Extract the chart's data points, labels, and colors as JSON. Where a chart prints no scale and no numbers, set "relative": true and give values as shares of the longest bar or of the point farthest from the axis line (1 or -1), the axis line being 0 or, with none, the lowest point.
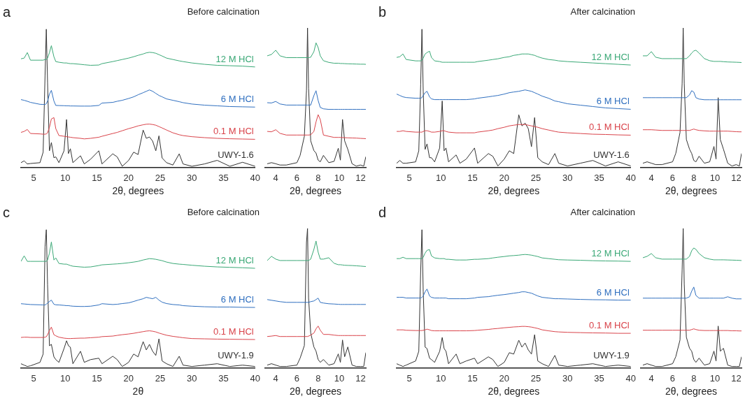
{
  "chart_data": [
    {
      "type": "line",
      "relative": true,
      "title": "Before calcination",
      "annotations": [
        "a"
      ],
      "xlabel": "2θ, degrees",
      "xlim": [
        3,
        40
      ],
      "xticks": [
        5,
        10,
        15,
        20,
        25,
        30,
        35,
        40
      ],
      "x": [
        3,
        3.5,
        4,
        4.5,
        6,
        6.5,
        6.8,
        7,
        7.2,
        7.5,
        7.8,
        8.2,
        8.5,
        9,
        9.8,
        10.2,
        10.5,
        10.8,
        11.2,
        12.4,
        13,
        14,
        15.3,
        15.8,
        17.5,
        18.2,
        19,
        20,
        20.8,
        21.5,
        22.3,
        22.8,
        23.3,
        23.8,
        24.3,
        24.8,
        25.3,
        26,
        27,
        28,
        28.6,
        30,
        32,
        34,
        36,
        38,
        40
      ],
      "series": [
        {
          "name": "12 M HCl",
          "color": "#3aa876",
          "values": [
            0.785,
            0.79,
            0.83,
            0.775,
            0.775,
            0.775,
            0.78,
            0.78,
            0.79,
            0.83,
            0.88,
            0.8,
            0.765,
            0.76,
            0.755,
            0.755,
            0.752,
            0.75,
            0.75,
            0.745,
            0.742,
            0.738,
            0.74,
            0.75,
            0.765,
            0.772,
            0.78,
            0.79,
            0.8,
            0.81,
            0.82,
            0.828,
            0.832,
            0.83,
            0.825,
            0.815,
            0.805,
            0.79,
            0.78,
            0.77,
            0.765,
            0.755,
            0.745,
            0.738,
            0.735,
            0.732,
            0.726
          ]
        },
        {
          "name": "6 M HCl",
          "color": "#2f6fbf",
          "values": [
            0.49,
            0.485,
            0.478,
            0.47,
            0.456,
            0.455,
            0.455,
            0.46,
            0.48,
            0.53,
            0.557,
            0.48,
            0.448,
            0.447,
            0.446,
            0.445,
            0.445,
            0.444,
            0.444,
            0.443,
            0.443,
            0.443,
            0.448,
            0.465,
            0.47,
            0.478,
            0.485,
            0.498,
            0.51,
            0.525,
            0.54,
            0.55,
            0.56,
            0.55,
            0.535,
            0.52,
            0.51,
            0.495,
            0.485,
            0.475,
            0.468,
            0.458,
            0.45,
            0.445,
            0.44,
            0.438,
            0.436
          ]
        },
        {
          "name": "0.1 M HCl",
          "color": "#d9434a",
          "values": [
            0.253,
            0.26,
            0.274,
            0.245,
            0.242,
            0.24,
            0.24,
            0.242,
            0.25,
            0.29,
            0.35,
            0.36,
            0.28,
            0.23,
            0.225,
            0.222,
            0.22,
            0.218,
            0.215,
            0.21,
            0.206,
            0.21,
            0.218,
            0.225,
            0.245,
            0.253,
            0.265,
            0.28,
            0.29,
            0.3,
            0.308,
            0.312,
            0.313,
            0.31,
            0.305,
            0.295,
            0.285,
            0.27,
            0.25,
            0.236,
            0.23,
            0.222,
            0.215,
            0.21,
            0.207,
            0.205,
            0.203
          ]
        },
        {
          "name": "UWY-1.6",
          "color": "#333333",
          "values": [
            0.034,
            0.047,
            0.025,
            0.028,
            0.034,
            0.11,
            0.66,
            1.0,
            0.61,
            0.12,
            0.18,
            0.07,
            0.076,
            0.034,
            0.12,
            0.346,
            0.1,
            0.135,
            0.034,
            0.084,
            0.025,
            0.059,
            0.12,
            0.025,
            0.098,
            0.076,
            0.008,
            0.05,
            0.11,
            0.093,
            0.27,
            0.21,
            0.22,
            0.19,
            0.12,
            0.228,
            0.068,
            0.034,
            0.017,
            0.098,
            0.025,
            0.008,
            0.025,
            0.051,
            0.008,
            0.037,
            0.008
          ]
        }
      ]
    },
    {
      "type": "line",
      "relative": true,
      "xlabel": "2θ, degrees",
      "xlim": [
        3,
        12.5
      ],
      "xticks": [
        4,
        6,
        8,
        10,
        12
      ],
      "x": [
        3.2,
        3.6,
        4,
        4.4,
        5,
        6,
        6.3,
        6.7,
        6.9,
        7.0,
        7.1,
        7.3,
        7.6,
        7.8,
        8.0,
        8.2,
        8.5,
        9,
        9.5,
        9.9,
        10.1,
        10.3,
        10.5,
        10.8,
        11.2,
        11.6,
        12,
        12.3,
        12.5
      ],
      "series": [
        {
          "color": "#3aa876",
          "values": [
            0.8,
            0.81,
            0.84,
            0.8,
            0.787,
            0.787,
            0.787,
            0.787,
            0.787,
            0.787,
            0.787,
            0.79,
            0.83,
            0.893,
            0.86,
            0.8,
            0.765,
            0.753,
            0.747,
            0.747,
            0.745,
            0.745,
            0.744,
            0.743,
            0.742,
            0.741,
            0.74,
            0.74,
            0.739
          ]
        },
        {
          "color": "#2f6fbf",
          "values": [
            0.464,
            0.462,
            0.473,
            0.455,
            0.447,
            0.447,
            0.447,
            0.447,
            0.447,
            0.447,
            0.447,
            0.447,
            0.515,
            0.55,
            0.48,
            0.43,
            0.42,
            0.416,
            0.416,
            0.416,
            0.416,
            0.416,
            0.416,
            0.416,
            0.416,
            0.416,
            0.416,
            0.416,
            0.416
          ]
        },
        {
          "color": "#d9434a",
          "values": [
            0.258,
            0.255,
            0.27,
            0.244,
            0.232,
            0.232,
            0.232,
            0.232,
            0.232,
            0.232,
            0.232,
            0.234,
            0.258,
            0.326,
            0.378,
            0.344,
            0.232,
            0.223,
            0.215,
            0.215,
            0.215,
            0.214,
            0.213,
            0.212,
            0.211,
            0.21,
            0.208,
            0.207,
            0.206
          ]
        },
        {
          "color": "#333333",
          "values": [
            0.026,
            0.034,
            0.026,
            0.017,
            0.017,
            0.034,
            0.086,
            0.223,
            0.55,
            1.0,
            0.567,
            0.19,
            0.12,
            0.103,
            0.052,
            0.04,
            0.086,
            0.034,
            0.043,
            0.137,
            0.052,
            0.344,
            0.19,
            0.129,
            0.026,
            0.009,
            0.017,
            0.009,
            0.077
          ]
        }
      ]
    },
    {
      "type": "line",
      "relative": true,
      "title": "After calcination",
      "annotations": [
        "b"
      ],
      "xlabel": "2θ, degrees",
      "xlim": [
        3,
        40
      ],
      "xticks": [
        5,
        10,
        15,
        20,
        25,
        30,
        35,
        40
      ],
      "x": [
        3,
        3.5,
        4,
        4.5,
        6,
        6.5,
        6.8,
        7,
        7.2,
        7.5,
        7.8,
        8.2,
        8.5,
        9,
        9.8,
        10.2,
        10.5,
        10.8,
        11.2,
        12.4,
        13,
        14,
        15.3,
        15.8,
        17.5,
        18.2,
        19,
        20,
        20.8,
        21.5,
        22.3,
        22.8,
        23.3,
        23.8,
        24.3,
        24.8,
        25.3,
        26,
        27,
        28,
        28.6,
        30,
        32,
        34,
        36,
        38,
        40
      ],
      "series": [
        {
          "name": "12 M HCl",
          "color": "#3aa876",
          "values": [
            0.795,
            0.8,
            0.82,
            0.78,
            0.77,
            0.77,
            0.77,
            0.775,
            0.79,
            0.82,
            0.83,
            0.84,
            0.795,
            0.77,
            0.765,
            0.76,
            0.76,
            0.76,
            0.76,
            0.76,
            0.76,
            0.76,
            0.76,
            0.765,
            0.775,
            0.78,
            0.785,
            0.795,
            0.8,
            0.81,
            0.815,
            0.82,
            0.82,
            0.82,
            0.815,
            0.81,
            0.8,
            0.79,
            0.78,
            0.775,
            0.77,
            0.765,
            0.76,
            0.755,
            0.75,
            0.745,
            0.74
          ]
        },
        {
          "name": "6 M HCl",
          "color": "#2f6fbf",
          "values": [
            0.53,
            0.52,
            0.51,
            0.505,
            0.5,
            0.5,
            0.5,
            0.505,
            0.52,
            0.54,
            0.55,
            0.51,
            0.495,
            0.49,
            0.49,
            0.49,
            0.49,
            0.49,
            0.49,
            0.49,
            0.49,
            0.49,
            0.495,
            0.5,
            0.51,
            0.515,
            0.52,
            0.53,
            0.54,
            0.545,
            0.55,
            0.555,
            0.56,
            0.555,
            0.55,
            0.54,
            0.53,
            0.515,
            0.5,
            0.48,
            0.475,
            0.46,
            0.45,
            0.44,
            0.43,
            0.425,
            0.42
          ]
        },
        {
          "name": "0.1 M HCl",
          "color": "#d9434a",
          "values": [
            0.26,
            0.26,
            0.265,
            0.26,
            0.255,
            0.255,
            0.255,
            0.255,
            0.26,
            0.265,
            0.265,
            0.26,
            0.255,
            0.255,
            0.26,
            0.265,
            0.265,
            0.26,
            0.255,
            0.25,
            0.25,
            0.25,
            0.25,
            0.255,
            0.265,
            0.27,
            0.28,
            0.29,
            0.3,
            0.305,
            0.31,
            0.31,
            0.31,
            0.305,
            0.3,
            0.295,
            0.29,
            0.28,
            0.27,
            0.26,
            0.255,
            0.25,
            0.245,
            0.24,
            0.238,
            0.235,
            0.233
          ]
        },
        {
          "name": "UWY-1.6",
          "color": "#333333",
          "values": [
            0.03,
            0.05,
            0.03,
            0.03,
            0.04,
            0.12,
            0.6,
            1.0,
            0.55,
            0.13,
            0.17,
            0.07,
            0.07,
            0.04,
            0.14,
            0.48,
            0.12,
            0.14,
            0.04,
            0.09,
            0.03,
            0.06,
            0.14,
            0.03,
            0.1,
            0.08,
            0.01,
            0.06,
            0.12,
            0.1,
            0.38,
            0.3,
            0.32,
            0.28,
            0.15,
            0.36,
            0.07,
            0.04,
            0.02,
            0.1,
            0.03,
            0.01,
            0.03,
            0.05,
            0.01,
            0.04,
            0.01
          ]
        }
      ]
    },
    {
      "type": "line",
      "relative": true,
      "xlabel": "2θ, degrees",
      "xlim": [
        3,
        12.5
      ],
      "xticks": [
        4,
        6,
        8,
        10,
        12
      ],
      "x": [
        3.2,
        3.6,
        4,
        4.4,
        5,
        6,
        6.3,
        6.7,
        6.9,
        7.0,
        7.1,
        7.3,
        7.6,
        7.8,
        8.0,
        8.2,
        8.5,
        9,
        9.5,
        9.9,
        10.1,
        10.3,
        10.5,
        10.8,
        11.2,
        11.6,
        12,
        12.3,
        12.5
      ],
      "series": [
        {
          "color": "#3aa876",
          "values": [
            0.8,
            0.8,
            0.83,
            0.79,
            0.78,
            0.78,
            0.78,
            0.78,
            0.78,
            0.78,
            0.78,
            0.78,
            0.8,
            0.82,
            0.835,
            0.84,
            0.82,
            0.78,
            0.765,
            0.76,
            0.76,
            0.76,
            0.76,
            0.758,
            0.756,
            0.755,
            0.754,
            0.753,
            0.752
          ]
        },
        {
          "color": "#2f6fbf",
          "values": [
            0.5,
            0.5,
            0.5,
            0.5,
            0.5,
            0.5,
            0.5,
            0.5,
            0.5,
            0.5,
            0.5,
            0.5,
            0.52,
            0.55,
            0.54,
            0.5,
            0.49,
            0.485,
            0.485,
            0.485,
            0.485,
            0.485,
            0.485,
            0.485,
            0.485,
            0.485,
            0.485,
            0.485,
            0.485
          ]
        },
        {
          "color": "#d9434a",
          "values": [
            0.27,
            0.27,
            0.27,
            0.268,
            0.265,
            0.265,
            0.265,
            0.265,
            0.265,
            0.265,
            0.265,
            0.265,
            0.265,
            0.27,
            0.275,
            0.27,
            0.265,
            0.262,
            0.26,
            0.26,
            0.26,
            0.26,
            0.26,
            0.26,
            0.26,
            0.258,
            0.256,
            0.255,
            0.255
          ]
        },
        {
          "color": "#333333",
          "values": [
            0.03,
            0.04,
            0.03,
            0.02,
            0.02,
            0.04,
            0.1,
            0.25,
            0.6,
            1.0,
            0.6,
            0.2,
            0.13,
            0.1,
            0.05,
            0.04,
            0.08,
            0.03,
            0.04,
            0.15,
            0.06,
            0.5,
            0.2,
            0.13,
            0.03,
            0.01,
            0.02,
            0.01,
            0.1
          ]
        }
      ]
    },
    {
      "type": "line",
      "relative": true,
      "title": "Before calcination",
      "annotations": [
        "c"
      ],
      "xlabel": "2θ",
      "xlim": [
        3,
        40
      ],
      "xticks": [
        5,
        10,
        15,
        20,
        25,
        30,
        35,
        40
      ],
      "x": [
        3,
        3.5,
        4,
        4.5,
        6,
        6.5,
        6.8,
        7,
        7.2,
        7.5,
        7.8,
        8.2,
        8.5,
        9,
        9.8,
        10.2,
        10.5,
        10.8,
        11.2,
        12.4,
        13,
        14,
        15.3,
        15.8,
        17.5,
        18.2,
        19,
        20,
        20.8,
        21.5,
        22.3,
        22.8,
        23.3,
        23.8,
        24.3,
        24.8,
        25.3,
        26,
        27,
        28,
        28.6,
        30,
        32,
        34,
        36,
        38,
        40
      ],
      "series": [
        {
          "name": "12 M HCl",
          "color": "#3aa876",
          "values": [
            0.77,
            0.81,
            0.77,
            0.77,
            0.77,
            0.77,
            0.77,
            0.77,
            0.78,
            0.83,
            0.91,
            0.78,
            0.795,
            0.755,
            0.75,
            0.75,
            0.745,
            0.74,
            0.735,
            0.73,
            0.728,
            0.73,
            0.74,
            0.745,
            0.75,
            0.752,
            0.755,
            0.76,
            0.765,
            0.77,
            0.78,
            0.785,
            0.79,
            0.788,
            0.785,
            0.78,
            0.775,
            0.765,
            0.755,
            0.75,
            0.748,
            0.742,
            0.735,
            0.73,
            0.727,
            0.724,
            0.72
          ]
        },
        {
          "name": "6 M HCl",
          "color": "#2f6fbf",
          "values": [
            0.464,
            0.462,
            0.46,
            0.458,
            0.456,
            0.455,
            0.455,
            0.46,
            0.47,
            0.48,
            0.49,
            0.46,
            0.456,
            0.455,
            0.452,
            0.45,
            0.45,
            0.448,
            0.446,
            0.444,
            0.444,
            0.446,
            0.455,
            0.464,
            0.458,
            0.46,
            0.465,
            0.47,
            0.48,
            0.49,
            0.5,
            0.51,
            0.505,
            0.5,
            0.51,
            0.49,
            0.475,
            0.465,
            0.458,
            0.455,
            0.45,
            0.446,
            0.442,
            0.44,
            0.44,
            0.438,
            0.437
          ]
        },
        {
          "name": "0.1 M HCl",
          "color": "#d9434a",
          "values": [
            0.22,
            0.222,
            0.222,
            0.22,
            0.22,
            0.22,
            0.222,
            0.225,
            0.24,
            0.27,
            0.295,
            0.24,
            0.232,
            0.222,
            0.215,
            0.213,
            0.212,
            0.212,
            0.213,
            0.215,
            0.215,
            0.218,
            0.222,
            0.226,
            0.23,
            0.235,
            0.24,
            0.245,
            0.25,
            0.256,
            0.262,
            0.266,
            0.268,
            0.265,
            0.26,
            0.252,
            0.245,
            0.236,
            0.228,
            0.222,
            0.218,
            0.212,
            0.21,
            0.208,
            0.207,
            0.206,
            0.205
          ]
        },
        {
          "name": "UWY-1.9",
          "color": "#333333",
          "values": [
            0.03,
            0.02,
            0.01,
            0.015,
            0.04,
            0.1,
            0.875,
            1.0,
            0.6,
            0.16,
            0.17,
            0.08,
            0.06,
            0.04,
            0.14,
            0.196,
            0.16,
            0.15,
            0.03,
            0.12,
            0.04,
            0.06,
            0.07,
            0.03,
            0.084,
            0.06,
            0.01,
            0.04,
            0.1,
            0.08,
            0.19,
            0.13,
            0.17,
            0.12,
            0.09,
            0.21,
            0.05,
            0.03,
            0.01,
            0.084,
            0.02,
            0.01,
            0.02,
            0.03,
            0.01,
            0.02,
            0.01
          ]
        }
      ]
    },
    {
      "type": "line",
      "relative": true,
      "xlabel": "2θ, degrees",
      "xlim": [
        3,
        12.5
      ],
      "xticks": [
        4,
        6,
        8,
        10,
        12
      ],
      "x": [
        3.2,
        3.6,
        4,
        4.4,
        5,
        6,
        6.3,
        6.7,
        6.9,
        7.0,
        7.1,
        7.3,
        7.6,
        7.8,
        8.0,
        8.2,
        8.5,
        9,
        9.5,
        9.9,
        10.1,
        10.3,
        10.5,
        10.8,
        11.2,
        11.6,
        12,
        12.3,
        12.5
      ],
      "series": [
        {
          "color": "#3aa876",
          "values": [
            0.77,
            0.8,
            0.78,
            0.77,
            0.77,
            0.77,
            0.77,
            0.77,
            0.77,
            0.77,
            0.77,
            0.78,
            0.85,
            0.91,
            0.83,
            0.78,
            0.78,
            0.79,
            0.75,
            0.74,
            0.74,
            0.738,
            0.736,
            0.735,
            0.734,
            0.732,
            0.73,
            0.728,
            0.727
          ]
        },
        {
          "color": "#2f6fbf",
          "values": [
            0.49,
            0.485,
            0.48,
            0.475,
            0.47,
            0.47,
            0.47,
            0.47,
            0.47,
            0.47,
            0.47,
            0.475,
            0.48,
            0.49,
            0.5,
            0.47,
            0.465,
            0.46,
            0.458,
            0.456,
            0.455,
            0.455,
            0.455,
            0.455,
            0.455,
            0.455,
            0.455,
            0.455,
            0.455
          ]
        },
        {
          "color": "#d9434a",
          "values": [
            0.225,
            0.228,
            0.232,
            0.225,
            0.225,
            0.225,
            0.225,
            0.225,
            0.225,
            0.225,
            0.228,
            0.235,
            0.25,
            0.28,
            0.3,
            0.27,
            0.24,
            0.24,
            0.235,
            0.232,
            0.232,
            0.232,
            0.232,
            0.232,
            0.232,
            0.232,
            0.232,
            0.232,
            0.232
          ]
        },
        {
          "color": "#333333",
          "values": [
            0.02,
            0.03,
            0.02,
            0.01,
            0.01,
            0.02,
            0.07,
            0.16,
            0.9,
            1.0,
            0.5,
            0.25,
            0.15,
            0.12,
            0.06,
            0.04,
            0.06,
            0.02,
            0.03,
            0.1,
            0.04,
            0.2,
            0.08,
            0.15,
            0.02,
            0.01,
            0.01,
            0.01,
            0.11
          ]
        }
      ]
    },
    {
      "type": "line",
      "relative": true,
      "title": "After calcination",
      "annotations": [
        "d"
      ],
      "xlabel": "2θ, degrees",
      "xlim": [
        3,
        40
      ],
      "xticks": [
        5,
        10,
        15,
        20,
        25,
        30,
        35,
        40
      ],
      "x": [
        3,
        3.5,
        4,
        4.5,
        6,
        6.5,
        6.8,
        7,
        7.2,
        7.5,
        7.8,
        8.2,
        8.5,
        9,
        9.8,
        10.2,
        10.5,
        10.8,
        11.2,
        12.4,
        13,
        14,
        15.3,
        15.8,
        17.5,
        18.2,
        19,
        20,
        20.8,
        21.5,
        22.3,
        22.8,
        23.3,
        23.8,
        24.3,
        24.8,
        25.3,
        26,
        27,
        28,
        28.6,
        30,
        32,
        34,
        36,
        38,
        40
      ],
      "series": [
        {
          "name": "12 M HCl",
          "color": "#3aa876",
          "values": [
            0.79,
            0.79,
            0.8,
            0.79,
            0.79,
            0.79,
            0.79,
            0.79,
            0.8,
            0.83,
            0.85,
            0.855,
            0.81,
            0.795,
            0.79,
            0.79,
            0.79,
            0.785,
            0.785,
            0.78,
            0.78,
            0.78,
            0.785,
            0.785,
            0.79,
            0.795,
            0.8,
            0.805,
            0.81,
            0.812,
            0.815,
            0.818,
            0.82,
            0.818,
            0.815,
            0.81,
            0.805,
            0.795,
            0.79,
            0.785,
            0.782,
            0.78,
            0.778,
            0.775,
            0.773,
            0.772,
            0.77
          ]
        },
        {
          "name": "6 M HCl",
          "color": "#2f6fbf",
          "values": [
            0.51,
            0.51,
            0.51,
            0.505,
            0.505,
            0.505,
            0.505,
            0.51,
            0.52,
            0.55,
            0.57,
            0.52,
            0.51,
            0.505,
            0.505,
            0.505,
            0.505,
            0.505,
            0.5,
            0.5,
            0.5,
            0.5,
            0.505,
            0.51,
            0.515,
            0.52,
            0.525,
            0.53,
            0.535,
            0.54,
            0.545,
            0.55,
            0.55,
            0.545,
            0.54,
            0.53,
            0.52,
            0.51,
            0.505,
            0.5,
            0.5,
            0.498,
            0.495,
            0.493,
            0.492,
            0.49,
            0.49
          ]
        },
        {
          "name": "0.1 M HCl",
          "color": "#d9434a",
          "values": [
            0.275,
            0.275,
            0.275,
            0.272,
            0.27,
            0.27,
            0.27,
            0.27,
            0.272,
            0.275,
            0.28,
            0.275,
            0.27,
            0.268,
            0.268,
            0.268,
            0.268,
            0.268,
            0.268,
            0.268,
            0.268,
            0.268,
            0.27,
            0.272,
            0.278,
            0.282,
            0.285,
            0.29,
            0.293,
            0.296,
            0.298,
            0.3,
            0.3,
            0.298,
            0.295,
            0.29,
            0.285,
            0.275,
            0.268,
            0.262,
            0.26,
            0.257,
            0.255,
            0.253,
            0.252,
            0.25,
            0.25
          ]
        },
        {
          "name": "UWY-1.9",
          "color": "#333333",
          "values": [
            0.03,
            0.02,
            0.01,
            0.02,
            0.05,
            0.12,
            0.7,
            1.0,
            0.55,
            0.15,
            0.14,
            0.07,
            0.06,
            0.04,
            0.12,
            0.22,
            0.14,
            0.12,
            0.03,
            0.1,
            0.03,
            0.05,
            0.07,
            0.03,
            0.08,
            0.06,
            0.01,
            0.04,
            0.11,
            0.1,
            0.2,
            0.15,
            0.18,
            0.13,
            0.1,
            0.24,
            0.05,
            0.03,
            0.01,
            0.09,
            0.02,
            0.01,
            0.02,
            0.03,
            0.01,
            0.02,
            0.01
          ]
        }
      ]
    },
    {
      "type": "line",
      "relative": true,
      "xlabel": "2θ, degrees",
      "xlim": [
        3,
        12.5
      ],
      "xticks": [
        4,
        6,
        8,
        10,
        12
      ],
      "x": [
        3.2,
        3.6,
        4,
        4.4,
        5,
        6,
        6.3,
        6.7,
        6.9,
        7.0,
        7.1,
        7.3,
        7.6,
        7.8,
        8.0,
        8.2,
        8.5,
        9,
        9.5,
        9.9,
        10.1,
        10.3,
        10.5,
        10.8,
        11.2,
        11.6,
        12,
        12.3,
        12.5
      ],
      "series": [
        {
          "color": "#3aa876",
          "values": [
            0.79,
            0.8,
            0.82,
            0.79,
            0.78,
            0.78,
            0.78,
            0.78,
            0.78,
            0.78,
            0.78,
            0.78,
            0.8,
            0.84,
            0.86,
            0.85,
            0.82,
            0.79,
            0.78,
            0.775,
            0.775,
            0.775,
            0.775,
            0.775,
            0.774,
            0.773,
            0.772,
            0.771,
            0.77
          ]
        },
        {
          "color": "#2f6fbf",
          "values": [
            0.5,
            0.5,
            0.5,
            0.5,
            0.5,
            0.5,
            0.5,
            0.5,
            0.5,
            0.5,
            0.5,
            0.5,
            0.51,
            0.55,
            0.58,
            0.52,
            0.5,
            0.5,
            0.5,
            0.5,
            0.5,
            0.5,
            0.5,
            0.5,
            0.51,
            0.5,
            0.495,
            0.495,
            0.495
          ]
        },
        {
          "color": "#d9434a",
          "values": [
            0.27,
            0.27,
            0.27,
            0.27,
            0.27,
            0.27,
            0.27,
            0.27,
            0.27,
            0.27,
            0.27,
            0.27,
            0.27,
            0.275,
            0.28,
            0.275,
            0.27,
            0.268,
            0.268,
            0.268,
            0.268,
            0.268,
            0.268,
            0.268,
            0.268,
            0.266,
            0.266,
            0.265,
            0.265
          ]
        },
        {
          "color": "#333333",
          "values": [
            0.02,
            0.03,
            0.02,
            0.01,
            0.01,
            0.03,
            0.08,
            0.2,
            0.7,
            1.0,
            0.6,
            0.22,
            0.14,
            0.12,
            0.06,
            0.04,
            0.07,
            0.02,
            0.03,
            0.12,
            0.05,
            0.3,
            0.12,
            0.14,
            0.02,
            0.01,
            0.01,
            0.01,
            0.08
          ]
        }
      ]
    }
  ]
}
